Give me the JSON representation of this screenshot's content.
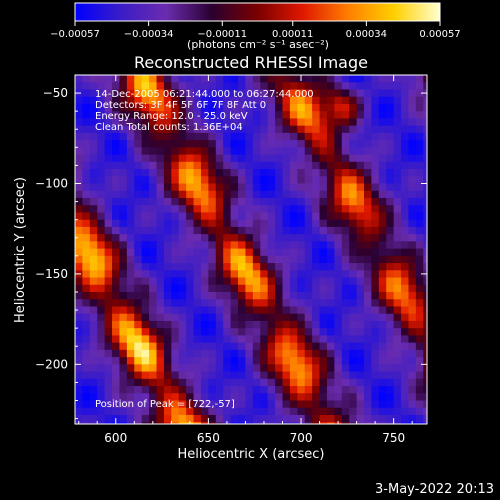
{
  "chart_data": {
    "type": "heatmap",
    "title": "Reconstructed RHESSI Image",
    "xlabel": "Heliocentric X (arcsec)",
    "ylabel": "Heliocentric Y (arcsec)",
    "xlim": [
      578,
      768
    ],
    "ylim": [
      -233,
      -40
    ],
    "x_ticks": [
      600,
      650,
      700,
      750
    ],
    "x_tick_labels": [
      "600",
      "650",
      "700",
      "750"
    ],
    "y_ticks": [
      -50,
      -100,
      -150,
      -200
    ],
    "y_tick_labels": [
      "−50",
      "−100",
      "−150",
      "−200"
    ],
    "colorbar": {
      "range": [
        -0.00057,
        0.00057
      ],
      "ticks": [
        -0.00057,
        -0.00034,
        -0.00011,
        0.00011,
        0.00034,
        0.00057
      ],
      "tick_labels": [
        "−0.00057",
        "−0.00034",
        "−0.00011",
        "0.00011",
        "0.00034",
        "0.00057"
      ],
      "unit_label": "(photons cm⁻² s⁻¹ asec⁻²)",
      "colors": [
        "#0000ff",
        "#3a1cc8",
        "#6a2cae",
        "#2a0030",
        "#7a0000",
        "#e01800",
        "#ff8000",
        "#ffd000",
        "#ffffd0"
      ]
    },
    "annotations": [
      "14-Dec-2005 06:21:44.000 to 06:27:44.000",
      "Detectors: 3F 4F 5F 6F 7F 8F  Att 0",
      "Energy Range: 12.0 - 25.0 keV",
      "Clean     Total counts: 1.36E+04"
    ],
    "peak_label": "Position of Peak = [722,-57]",
    "peak": [
      722,
      -57
    ],
    "stripes": [
      {
        "intercept": -115,
        "amplitude": 0.00025
      },
      {
        "intercept": -40,
        "amplitude": 0.0005
      },
      {
        "intercept": 30,
        "amplitude": 0.00045
      },
      {
        "intercept": 100,
        "amplitude": 0.0004
      },
      {
        "intercept": 175,
        "amplitude": 0.00035
      }
    ],
    "stripe_slope_deg": -62
  },
  "footer": {
    "date": "3-May-2022 20:13"
  }
}
